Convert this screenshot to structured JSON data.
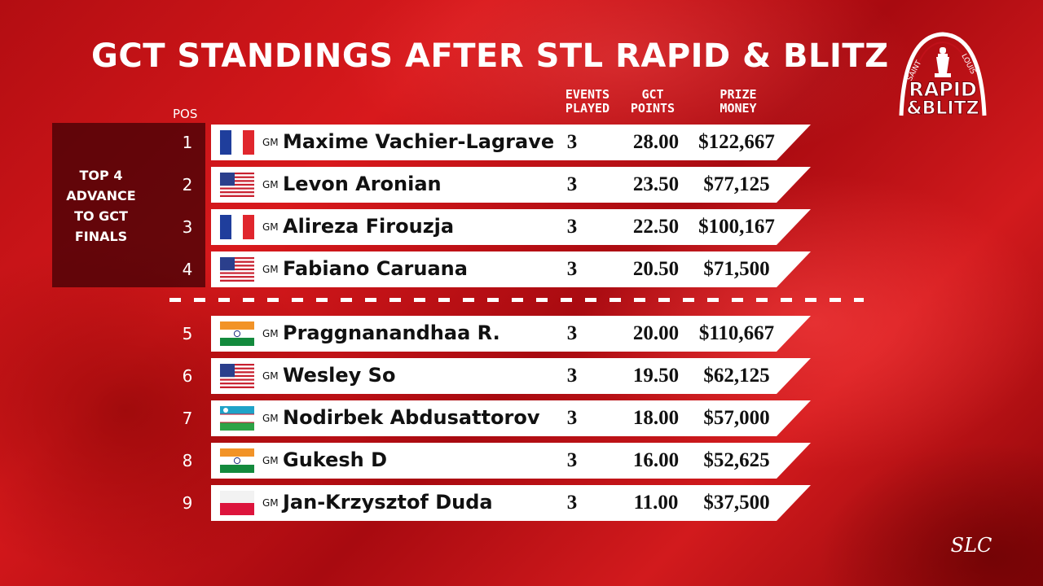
{
  "title": "GCT STANDINGS AFTER STL RAPID & BLITZ",
  "headers": {
    "pos": "POS",
    "events_1": "EVENTS",
    "events_2": "PLAYED",
    "points_1": "GCT",
    "points_2": "POINTS",
    "prize_1": "PRIZE",
    "prize_2": "MONEY"
  },
  "advance_note": [
    "TOP 4",
    "ADVANCE",
    "TO GCT",
    "FINALS"
  ],
  "rows": [
    {
      "pos": "1",
      "flag": "france-flag",
      "title": "GM",
      "name": "Maxime Vachier-Lagrave",
      "events": "3",
      "points": "28.00",
      "prize": "$122,667"
    },
    {
      "pos": "2",
      "flag": "usa-flag",
      "title": "GM",
      "name": "Levon Aronian",
      "events": "3",
      "points": "23.50",
      "prize": "$77,125"
    },
    {
      "pos": "3",
      "flag": "france-flag",
      "title": "GM",
      "name": "Alireza Firouzja",
      "events": "3",
      "points": "22.50",
      "prize": "$100,167"
    },
    {
      "pos": "4",
      "flag": "usa-flag",
      "title": "GM",
      "name": "Fabiano Caruana",
      "events": "3",
      "points": "20.50",
      "prize": "$71,500"
    },
    {
      "pos": "5",
      "flag": "india-flag",
      "title": "GM",
      "name": "Praggnanandhaa R.",
      "events": "3",
      "points": "20.00",
      "prize": "$110,667"
    },
    {
      "pos": "6",
      "flag": "usa-flag",
      "title": "GM",
      "name": "Wesley So",
      "events": "3",
      "points": "19.50",
      "prize": "$62,125"
    },
    {
      "pos": "7",
      "flag": "uzbekistan-flag",
      "title": "GM",
      "name": "Nodirbek Abdusattorov",
      "events": "3",
      "points": "18.00",
      "prize": "$57,000"
    },
    {
      "pos": "8",
      "flag": "india-flag",
      "title": "GM",
      "name": "Gukesh D",
      "events": "3",
      "points": "16.00",
      "prize": "$52,625"
    },
    {
      "pos": "9",
      "flag": "poland-flag",
      "title": "GM",
      "name": "Jan-Krzysztof Duda",
      "events": "3",
      "points": "11.00",
      "prize": "$37,500"
    }
  ],
  "logo": {
    "line_arc": "SAINT LOUIS",
    "line1": "RAPID",
    "line2": "&BLITZ"
  },
  "corner_logo": "SLC",
  "colors": {
    "background": "#c8161a",
    "row_background": "#ffffff",
    "advance_panel": "#3c0004"
  }
}
